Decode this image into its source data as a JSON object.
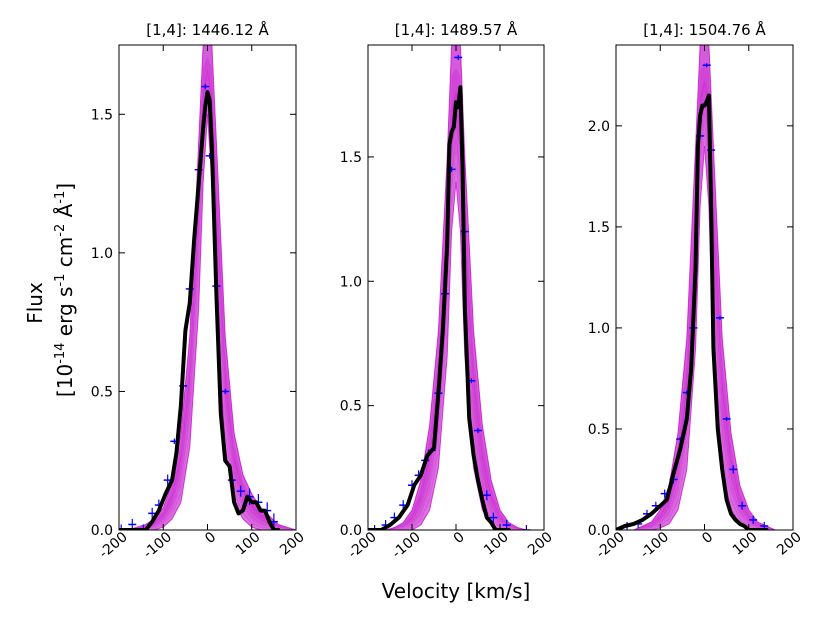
{
  "figure": {
    "ylabel_line1": "Flux",
    "ylabel_line2": {
      "open": "[10",
      "exp1": "-14",
      "erg": " erg s",
      "exp2": "-1",
      "cm": " cm",
      "exp3": "-2",
      "ang": " Å",
      "exp4": "-1",
      "close": "]"
    },
    "xlabel": "Velocity [km/s]",
    "colors": {
      "model": "#c000c8",
      "data": "#000000",
      "errorbars": "#0000ff"
    }
  },
  "chart_data": [
    {
      "type": "line",
      "title": "[1,4]: 1446.12 Å",
      "xlim": [
        -200,
        200
      ],
      "ylim": [
        0,
        1.75
      ],
      "xticks": [
        -200,
        -100,
        0,
        100,
        200
      ],
      "xtick_labels": [
        "-200",
        "-100",
        "0",
        "100",
        "200"
      ],
      "yticks": [
        0.0,
        0.5,
        1.0,
        1.5
      ],
      "ytick_labels": [
        "0.0",
        "0.5",
        "1.0",
        "1.5"
      ],
      "data": {
        "x": [
          -200,
          -180,
          -160,
          -140,
          -125,
          -110,
          -95,
          -80,
          -70,
          -60,
          -50,
          -40,
          -30,
          -20,
          -10,
          -5,
          0,
          5,
          10,
          20,
          30,
          40,
          50,
          60,
          70,
          80,
          90,
          100,
          110,
          120,
          130,
          140,
          150,
          160
        ],
        "y": [
          0.0,
          0.0,
          0.0,
          0.0,
          0.03,
          0.07,
          0.13,
          0.18,
          0.28,
          0.45,
          0.72,
          0.82,
          1.05,
          1.25,
          1.45,
          1.53,
          1.58,
          1.55,
          1.38,
          0.85,
          0.42,
          0.25,
          0.23,
          0.1,
          0.06,
          0.07,
          0.12,
          0.1,
          0.1,
          0.07,
          0.07,
          0.03,
          0.0,
          0.0
        ]
      },
      "model": {
        "x": [
          -200,
          -180,
          -160,
          -140,
          -120,
          -100,
          -80,
          -60,
          -40,
          -20,
          -10,
          0,
          10,
          20,
          40,
          60,
          80,
          100,
          120,
          140,
          160,
          180,
          200
        ],
        "low": [
          0.0,
          0.0,
          0.0,
          0.0,
          0.0,
          0.01,
          0.04,
          0.1,
          0.3,
          0.8,
          1.25,
          1.5,
          1.25,
          0.8,
          0.3,
          0.1,
          0.04,
          0.01,
          0.0,
          0.0,
          0.0,
          0.0,
          0.0
        ],
        "high": [
          0.0,
          0.0,
          0.01,
          0.02,
          0.04,
          0.08,
          0.17,
          0.35,
          0.7,
          1.4,
          1.75,
          1.75,
          1.75,
          1.4,
          0.7,
          0.35,
          0.2,
          0.13,
          0.08,
          0.05,
          0.02,
          0.01,
          0.0
        ]
      },
      "errorbars": {
        "x": [
          -195,
          -170,
          -145,
          -125,
          -110,
          -90,
          -75,
          -55,
          -40,
          -20,
          -5,
          5,
          20,
          40,
          55,
          75,
          95,
          115,
          135,
          150
        ],
        "y": [
          0.0,
          0.02,
          0.0,
          0.06,
          0.09,
          0.18,
          0.32,
          0.52,
          0.87,
          1.3,
          1.6,
          1.35,
          0.88,
          0.5,
          0.18,
          0.14,
          0.12,
          0.1,
          0.07,
          0.03
        ],
        "err": [
          0.02,
          0.02,
          0.02,
          0.02,
          0.02,
          0.02,
          0.01,
          0.01,
          0.01,
          0.01,
          0.01,
          0.01,
          0.01,
          0.01,
          0.02,
          0.02,
          0.03,
          0.03,
          0.03,
          0.03
        ]
      }
    },
    {
      "type": "line",
      "title": "[1,4]: 1489.57 Å",
      "xlim": [
        -200,
        200
      ],
      "ylim": [
        0,
        1.95
      ],
      "xticks": [
        -200,
        -100,
        0,
        100,
        200
      ],
      "xtick_labels": [
        "-200",
        "-100",
        "0",
        "100",
        "200"
      ],
      "yticks": [
        0.0,
        0.5,
        1.0,
        1.5
      ],
      "ytick_labels": [
        "0.0",
        "0.5",
        "1.0",
        "1.5"
      ],
      "data": {
        "x": [
          -200,
          -170,
          -150,
          -130,
          -110,
          -95,
          -80,
          -65,
          -50,
          -40,
          -30,
          -20,
          -15,
          -10,
          -5,
          0,
          5,
          10,
          15,
          20,
          30,
          40,
          50,
          60,
          70,
          80,
          90,
          100,
          110,
          120
        ],
        "y": [
          0.0,
          0.0,
          0.02,
          0.05,
          0.1,
          0.18,
          0.22,
          0.3,
          0.33,
          0.55,
          0.8,
          1.15,
          1.55,
          1.6,
          1.62,
          1.72,
          1.7,
          1.78,
          1.45,
          0.9,
          0.45,
          0.3,
          0.2,
          0.12,
          0.05,
          0.03,
          0.0,
          0.0,
          0.0,
          0.0
        ]
      },
      "model": {
        "x": [
          -200,
          -180,
          -160,
          -140,
          -120,
          -100,
          -80,
          -60,
          -40,
          -20,
          -10,
          0,
          10,
          20,
          40,
          60,
          80,
          100,
          120,
          140,
          160,
          180,
          200
        ],
        "low": [
          0.0,
          0.0,
          0.0,
          0.0,
          0.0,
          0.0,
          0.02,
          0.08,
          0.25,
          0.7,
          1.2,
          1.4,
          1.2,
          0.7,
          0.25,
          0.08,
          0.02,
          0.0,
          0.0,
          0.0,
          0.0,
          0.0,
          0.0
        ],
        "high": [
          0.0,
          0.0,
          0.0,
          0.01,
          0.03,
          0.08,
          0.2,
          0.42,
          0.8,
          1.5,
          1.95,
          1.95,
          1.95,
          1.5,
          0.8,
          0.42,
          0.2,
          0.08,
          0.03,
          0.01,
          0.0,
          0.0,
          0.0
        ]
      },
      "errorbars": {
        "x": [
          -185,
          -160,
          -140,
          -120,
          -100,
          -85,
          -70,
          -55,
          -40,
          -25,
          -10,
          5,
          20,
          35,
          50,
          70,
          85,
          115,
          160
        ],
        "y": [
          0.0,
          0.02,
          0.05,
          0.1,
          0.18,
          0.22,
          0.28,
          0.32,
          0.55,
          0.95,
          1.45,
          1.9,
          1.2,
          0.6,
          0.4,
          0.14,
          0.05,
          0.02,
          0.0
        ],
        "err": [
          0.02,
          0.02,
          0.02,
          0.02,
          0.02,
          0.02,
          0.01,
          0.01,
          0.01,
          0.01,
          0.01,
          0.01,
          0.01,
          0.01,
          0.01,
          0.02,
          0.02,
          0.02,
          0.02
        ]
      }
    },
    {
      "type": "line",
      "title": "[1,4]: 1504.76 Å",
      "xlim": [
        -200,
        200
      ],
      "ylim": [
        0,
        2.4
      ],
      "xticks": [
        -200,
        -100,
        0,
        100,
        200
      ],
      "xtick_labels": [
        "-200",
        "-100",
        "0",
        "100",
        "200"
      ],
      "yticks": [
        0.0,
        0.5,
        1.0,
        1.5,
        2.0
      ],
      "ytick_labels": [
        "0.0",
        "0.5",
        "1.0",
        "1.5",
        "2.0"
      ],
      "data": {
        "x": [
          -200,
          -180,
          -160,
          -140,
          -120,
          -100,
          -85,
          -70,
          -55,
          -40,
          -30,
          -20,
          -15,
          -10,
          -5,
          0,
          5,
          10,
          15,
          20,
          30,
          40,
          50,
          60,
          70,
          80,
          90,
          100,
          120,
          140
        ],
        "y": [
          0.0,
          0.02,
          0.03,
          0.05,
          0.08,
          0.12,
          0.15,
          0.28,
          0.4,
          0.55,
          0.8,
          1.3,
          1.9,
          2.05,
          2.1,
          2.1,
          2.12,
          2.15,
          1.6,
          0.9,
          0.5,
          0.3,
          0.15,
          0.08,
          0.05,
          0.03,
          0.02,
          0.0,
          0.0,
          0.0
        ]
      },
      "model": {
        "x": [
          -200,
          -180,
          -160,
          -140,
          -120,
          -100,
          -80,
          -60,
          -40,
          -20,
          -10,
          0,
          10,
          20,
          40,
          60,
          80,
          100,
          120,
          140,
          160,
          180,
          200
        ],
        "low": [
          0.0,
          0.0,
          0.0,
          0.0,
          0.0,
          0.01,
          0.03,
          0.1,
          0.3,
          0.9,
          1.6,
          1.9,
          1.6,
          0.9,
          0.3,
          0.1,
          0.03,
          0.01,
          0.0,
          0.0,
          0.0,
          0.0,
          0.0
        ],
        "high": [
          0.0,
          0.0,
          0.0,
          0.02,
          0.04,
          0.1,
          0.22,
          0.48,
          0.95,
          1.9,
          2.4,
          2.4,
          2.4,
          1.9,
          0.95,
          0.48,
          0.22,
          0.1,
          0.04,
          0.02,
          0.0,
          0.0,
          0.0
        ]
      },
      "errorbars": {
        "x": [
          -175,
          -150,
          -130,
          -110,
          -90,
          -70,
          -55,
          -40,
          -25,
          -10,
          5,
          15,
          35,
          50,
          65,
          85,
          110,
          135
        ],
        "y": [
          0.02,
          0.03,
          0.08,
          0.12,
          0.18,
          0.25,
          0.45,
          0.68,
          1.0,
          1.95,
          2.3,
          1.88,
          1.05,
          0.55,
          0.3,
          0.12,
          0.05,
          0.02
        ],
        "err": [
          0.02,
          0.02,
          0.02,
          0.02,
          0.02,
          0.02,
          0.01,
          0.01,
          0.01,
          0.01,
          0.01,
          0.01,
          0.01,
          0.01,
          0.02,
          0.02,
          0.02,
          0.02
        ]
      }
    }
  ]
}
